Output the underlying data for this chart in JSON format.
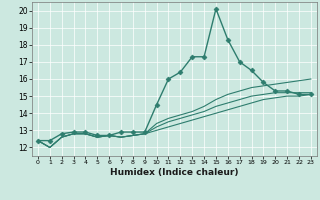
{
  "xlabel": "Humidex (Indice chaleur)",
  "xlim": [
    -0.5,
    23.5
  ],
  "ylim": [
    11.5,
    20.5
  ],
  "yticks": [
    12,
    13,
    14,
    15,
    16,
    17,
    18,
    19,
    20
  ],
  "xticks": [
    0,
    1,
    2,
    3,
    4,
    5,
    6,
    7,
    8,
    9,
    10,
    11,
    12,
    13,
    14,
    15,
    16,
    17,
    18,
    19,
    20,
    21,
    22,
    23
  ],
  "bg_color": "#cce8e0",
  "line_color": "#2e7d6e",
  "grid_color": "#ffffff",
  "series": [
    {
      "x": [
        0,
        1,
        2,
        3,
        4,
        5,
        6,
        7,
        8,
        9,
        10,
        11,
        12,
        13,
        14,
        15,
        16,
        17,
        18,
        19,
        20,
        21,
        22,
        23
      ],
      "y": [
        12.4,
        12.4,
        12.8,
        12.9,
        12.9,
        12.7,
        12.7,
        12.9,
        12.9,
        12.9,
        14.5,
        16.0,
        16.4,
        17.3,
        17.3,
        20.1,
        18.3,
        17.0,
        16.5,
        15.8,
        15.3,
        15.3,
        15.1,
        15.1
      ],
      "marker": "D",
      "markersize": 2.5,
      "lw": 1.0
    },
    {
      "x": [
        0,
        1,
        2,
        3,
        4,
        5,
        6,
        7,
        8,
        9,
        10,
        11,
        12,
        13,
        14,
        15,
        16,
        17,
        18,
        19,
        20,
        21,
        22,
        23
      ],
      "y": [
        12.4,
        12.0,
        12.6,
        12.8,
        12.8,
        12.6,
        12.7,
        12.6,
        12.7,
        12.8,
        13.4,
        13.7,
        13.9,
        14.1,
        14.4,
        14.8,
        15.1,
        15.3,
        15.5,
        15.6,
        15.7,
        15.8,
        15.9,
        16.0
      ],
      "marker": null,
      "markersize": 0,
      "lw": 0.8
    },
    {
      "x": [
        0,
        1,
        2,
        3,
        4,
        5,
        6,
        7,
        8,
        9,
        10,
        11,
        12,
        13,
        14,
        15,
        16,
        17,
        18,
        19,
        20,
        21,
        22,
        23
      ],
      "y": [
        12.4,
        12.0,
        12.6,
        12.8,
        12.8,
        12.6,
        12.7,
        12.6,
        12.7,
        12.8,
        13.2,
        13.5,
        13.7,
        13.9,
        14.1,
        14.4,
        14.6,
        14.8,
        15.0,
        15.1,
        15.2,
        15.2,
        15.2,
        15.2
      ],
      "marker": null,
      "markersize": 0,
      "lw": 0.8
    },
    {
      "x": [
        0,
        1,
        2,
        3,
        4,
        5,
        6,
        7,
        8,
        9,
        10,
        11,
        12,
        13,
        14,
        15,
        16,
        17,
        18,
        19,
        20,
        21,
        22,
        23
      ],
      "y": [
        12.4,
        12.0,
        12.6,
        12.8,
        12.8,
        12.6,
        12.7,
        12.6,
        12.7,
        12.8,
        13.0,
        13.2,
        13.4,
        13.6,
        13.8,
        14.0,
        14.2,
        14.4,
        14.6,
        14.8,
        14.9,
        15.0,
        15.0,
        15.1
      ],
      "marker": null,
      "markersize": 0,
      "lw": 0.8
    }
  ]
}
